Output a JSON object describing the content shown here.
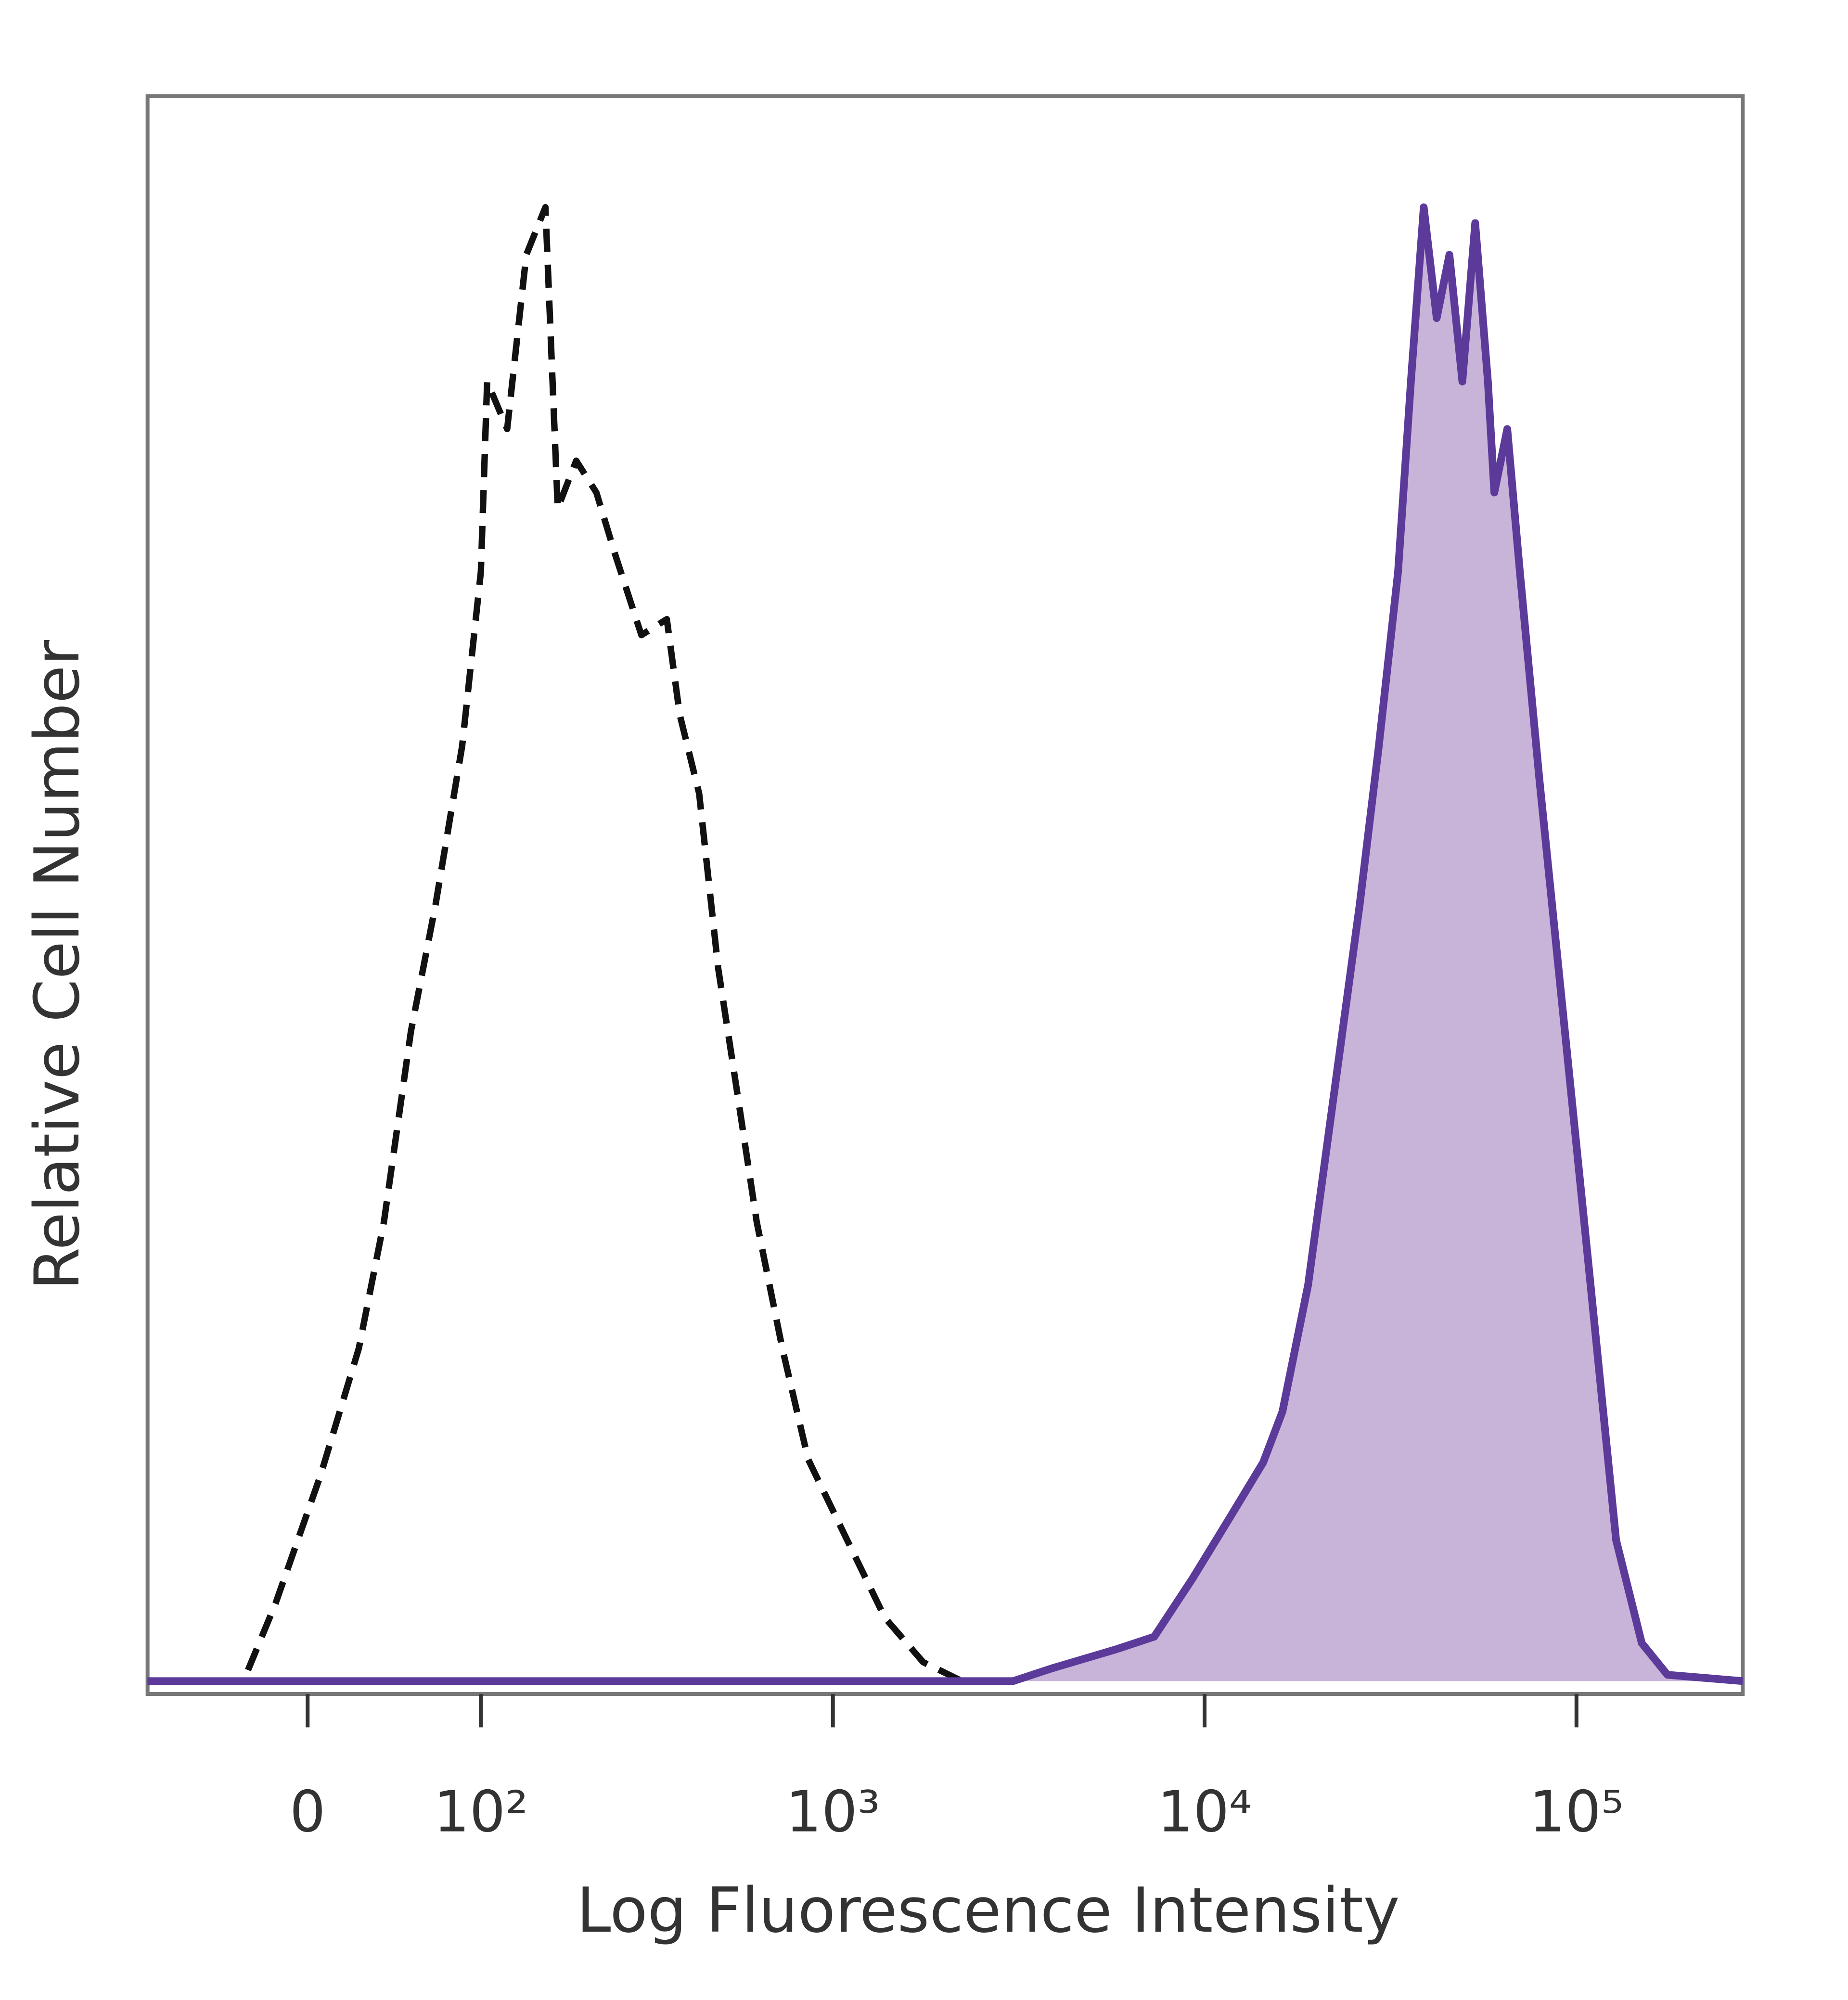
{
  "chart_data": {
    "type": "line",
    "xlabel": "Log Fluorescence Intensity",
    "ylabel": "Relative Cell Number",
    "xscale": "biexponential",
    "xlim": [
      -90,
      280000
    ],
    "xticks": [
      0,
      {
        "value": 100,
        "label": "10²"
      },
      {
        "value": 1000,
        "label": "10³"
      },
      {
        "value": 10000,
        "label": "10⁴"
      },
      {
        "value": 100000,
        "label": "10⁵"
      }
    ],
    "ylim": [
      0,
      100
    ],
    "series": [
      {
        "color": "#111111",
        "line_style": "dashed",
        "x": [
          -90,
          -31.6,
          -15.5,
          6.2,
          25,
          38,
          53,
          68,
          86,
          100,
          105,
          122,
          140,
          160,
          174,
          197,
          225,
          255,
          301,
          354,
          384,
          434,
          489,
          552,
          622,
          730,
          857,
          1087,
          1380,
          1750,
          2226
        ],
        "values": [
          0,
          0,
          4.9,
          13,
          21,
          29,
          41,
          49,
          59,
          70,
          82,
          79,
          90,
          93,
          74,
          77,
          75,
          71,
          66,
          67,
          61,
          56,
          45,
          37,
          29,
          21,
          14,
          9,
          4,
          1.2,
          0
        ]
      },
      {
        "color": "#5b3a9a",
        "fill": "#c8b4d8",
        "line_style": "solid",
        "x": [
          -90,
          3057,
          3882,
          5775,
          7324,
          9300,
          11820,
          14380,
          16200,
          18990,
          22280,
          26120,
          29410,
          33130,
          35880,
          38830,
          42080,
          45530,
          49330,
          53400,
          57780,
          60140,
          65140,
          70450,
          79400,
          93080,
          109100,
          127800,
          149800,
          175600,
          280000
        ],
        "values": [
          0,
          0,
          0.8,
          2,
          2.8,
          6.5,
          10.5,
          13.8,
          17,
          25,
          37,
          49,
          59,
          70,
          82,
          93,
          86,
          90,
          82,
          92,
          82,
          75,
          79,
          70,
          57,
          41,
          25,
          8.9,
          2.4,
          0.4,
          0
        ]
      }
    ]
  }
}
